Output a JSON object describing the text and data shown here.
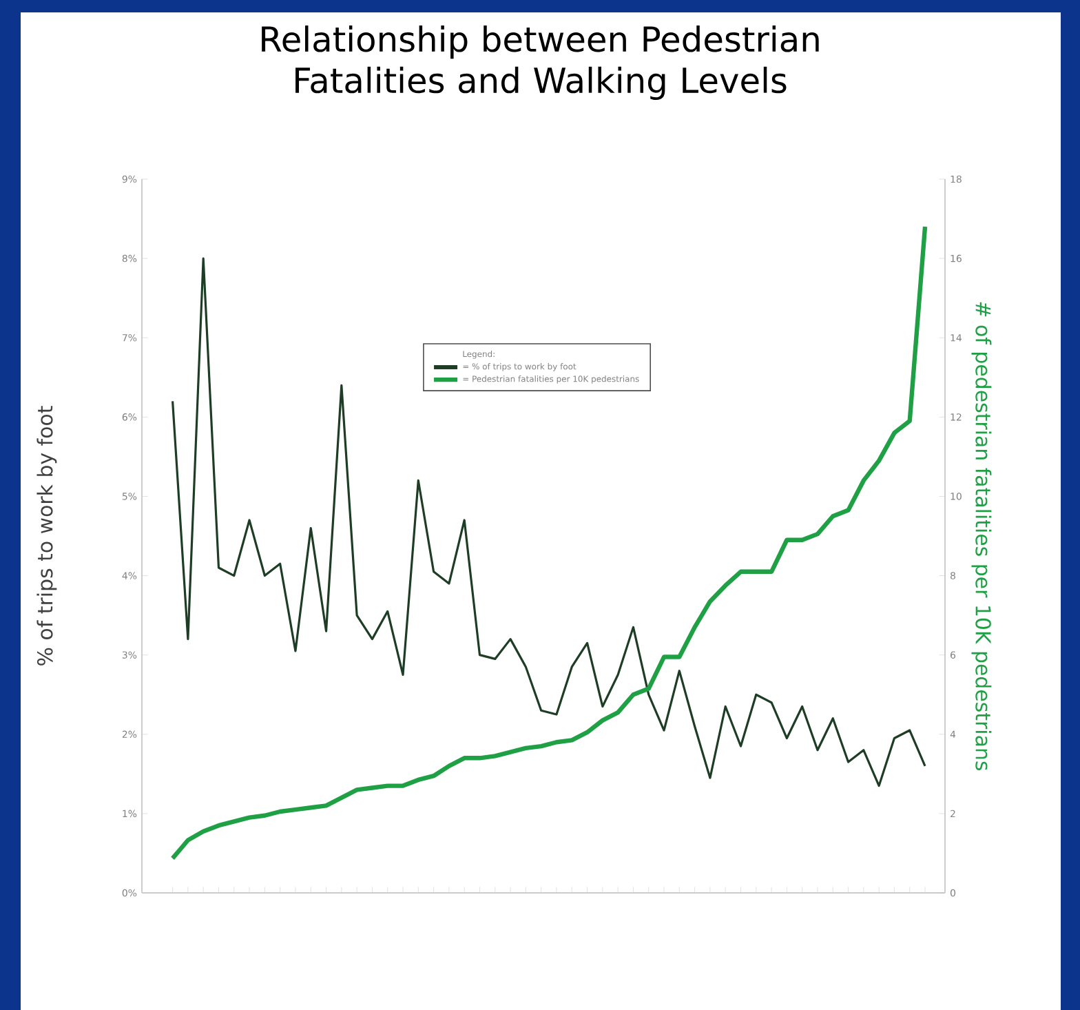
{
  "chart_data": {
    "type": "line",
    "title": "Relationship between Pedestrian Fatalities and Walking Levels",
    "ylabel": "% of trips to work by foot",
    "y2label": "# of pedestrian fatalities per 10K pedestrians",
    "legend_title": "Legend:",
    "legend": "top",
    "categories": [
      null,
      null,
      null,
      null,
      null,
      null,
      null,
      null,
      null,
      null,
      null,
      null,
      null,
      null,
      null,
      null,
      null,
      null,
      null,
      null,
      null,
      null,
      null,
      null,
      null,
      null,
      null,
      null,
      null,
      null,
      null,
      null,
      null,
      null,
      null,
      null,
      null,
      null,
      null,
      null,
      null,
      null,
      null,
      null,
      null,
      null,
      null,
      null,
      null,
      null
    ],
    "ylim": [
      0,
      9
    ],
    "yticks": [
      {
        "value": 0,
        "label": "0%"
      },
      {
        "value": 1,
        "label": "1%"
      },
      {
        "value": 2,
        "label": "2%"
      },
      {
        "value": 3,
        "label": "3%"
      },
      {
        "value": 4,
        "label": "4%"
      },
      {
        "value": 5,
        "label": "5%"
      },
      {
        "value": 6,
        "label": "6%"
      },
      {
        "value": 7,
        "label": "7%"
      },
      {
        "value": 8,
        "label": "8%"
      },
      {
        "value": 9,
        "label": "9%"
      }
    ],
    "y2lim": [
      0,
      18
    ],
    "y2ticks": [
      0,
      2,
      4,
      6,
      8,
      10,
      12,
      14,
      16,
      18
    ],
    "series": [
      {
        "name": "= % of trips to work by foot",
        "color": "#1e3d25",
        "values": [
          6.2,
          3.2,
          8.0,
          4.1,
          4.0,
          4.7,
          4.0,
          4.15,
          3.05,
          4.6,
          3.3,
          6.4,
          3.5,
          3.2,
          3.55,
          2.75,
          5.2,
          4.05,
          3.9,
          4.7,
          3.0,
          2.95,
          3.2,
          2.85,
          2.3,
          2.25,
          2.85,
          3.15,
          2.35,
          2.75,
          3.35,
          2.5,
          2.05,
          2.8,
          2.1,
          1.45,
          2.35,
          1.85,
          2.5,
          2.4,
          1.95,
          2.35,
          1.8,
          2.2,
          1.65,
          1.8,
          1.35,
          1.95,
          2.05,
          1.6
        ]
      },
      {
        "name": "= Pedestrian fatalities per 10K pedestrians",
        "color": "#1fa045",
        "axis": "y2",
        "values": [
          0.87,
          1.33,
          1.55,
          1.7,
          1.8,
          1.9,
          1.95,
          2.05,
          2.1,
          2.15,
          2.2,
          2.4,
          2.6,
          2.65,
          2.7,
          2.7,
          2.85,
          2.95,
          3.2,
          3.4,
          3.4,
          3.45,
          3.55,
          3.65,
          3.7,
          3.8,
          3.85,
          4.05,
          4.35,
          4.55,
          5.0,
          5.15,
          5.95,
          5.95,
          6.7,
          7.35,
          7.75,
          8.1,
          8.1,
          8.1,
          8.9,
          8.9,
          9.05,
          9.5,
          9.65,
          10.4,
          10.9,
          11.6,
          11.9,
          16.8
        ]
      }
    ]
  }
}
